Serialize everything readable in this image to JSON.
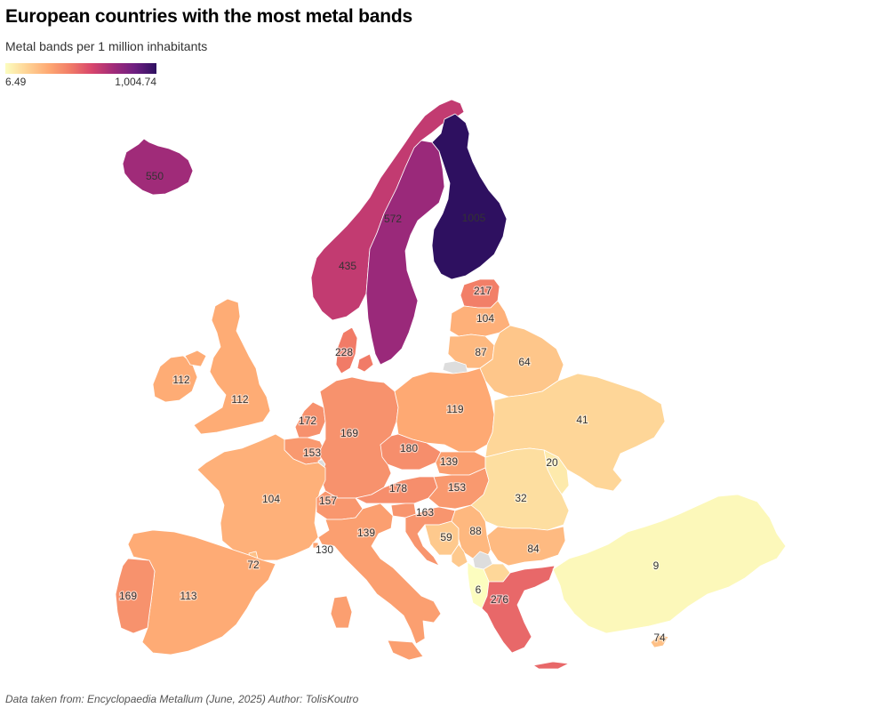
{
  "title": "European countries with the most metal bands",
  "subtitle": "Metal bands per 1 million inhabitants",
  "legend": {
    "min_label": "6.49",
    "max_label": "1,004.74",
    "min": 6.49,
    "max": 1004.74
  },
  "colors": {
    "scale": [
      "#fcfdbf",
      "#fed395",
      "#fea973",
      "#f17c67",
      "#d8466c",
      "#a12b79",
      "#6e1f81",
      "#2e1060"
    ],
    "no_data": "#dddddd"
  },
  "footer": "Data taken from: Encyclopaedia Metallum (June, 2025) Author: TolisKoutro",
  "map_data": [
    {
      "id": "iceland",
      "value": 550,
      "label": "550"
    },
    {
      "id": "norway",
      "value": 435,
      "label": "435"
    },
    {
      "id": "sweden",
      "value": 572,
      "label": "572"
    },
    {
      "id": "finland",
      "value": 1005,
      "label": "1005"
    },
    {
      "id": "estonia",
      "value": 217,
      "label": "217"
    },
    {
      "id": "latvia",
      "value": 104,
      "label": "104"
    },
    {
      "id": "lithuania",
      "value": 87,
      "label": "87"
    },
    {
      "id": "belarus",
      "value": 64,
      "label": "64"
    },
    {
      "id": "denmark",
      "value": 228,
      "label": "228"
    },
    {
      "id": "ireland",
      "value": 112,
      "label": "112"
    },
    {
      "id": "united-kingdom",
      "value": 112,
      "label": "112"
    },
    {
      "id": "netherlands",
      "value": 172,
      "label": "172"
    },
    {
      "id": "belgium",
      "value": 153,
      "label": "153"
    },
    {
      "id": "luxembourg",
      "value": null,
      "label": ""
    },
    {
      "id": "germany",
      "value": 169,
      "label": "169"
    },
    {
      "id": "poland",
      "value": 119,
      "label": "119"
    },
    {
      "id": "czechia",
      "value": 180,
      "label": "180"
    },
    {
      "id": "slovakia",
      "value": 139,
      "label": "139"
    },
    {
      "id": "ukraine",
      "value": 41,
      "label": "41"
    },
    {
      "id": "moldova",
      "value": 20,
      "label": "20"
    },
    {
      "id": "austria",
      "value": 178,
      "label": "178"
    },
    {
      "id": "hungary",
      "value": 153,
      "label": "153"
    },
    {
      "id": "romania",
      "value": 32,
      "label": "32"
    },
    {
      "id": "france",
      "value": 104,
      "label": "104"
    },
    {
      "id": "switzerland",
      "value": 157,
      "label": "157"
    },
    {
      "id": "slovenia",
      "value": 163,
      "label": "163"
    },
    {
      "id": "croatia",
      "value": 163,
      "label": ""
    },
    {
      "id": "bosnia",
      "value": 59,
      "label": "59"
    },
    {
      "id": "serbia",
      "value": 88,
      "label": "88"
    },
    {
      "id": "montenegro",
      "value": 59,
      "label": ""
    },
    {
      "id": "kosovo",
      "value": null,
      "label": ""
    },
    {
      "id": "north-macedonia",
      "value": 40,
      "label": ""
    },
    {
      "id": "albania",
      "value": 6,
      "label": "6"
    },
    {
      "id": "bulgaria",
      "value": 84,
      "label": "84"
    },
    {
      "id": "italy",
      "value": 139,
      "label": "139"
    },
    {
      "id": "monaco",
      "value": 130,
      "label": "130"
    },
    {
      "id": "andorra",
      "value": 72,
      "label": "72"
    },
    {
      "id": "spain",
      "value": 113,
      "label": "113"
    },
    {
      "id": "portugal",
      "value": 169,
      "label": "169"
    },
    {
      "id": "greece",
      "value": 276,
      "label": "276"
    },
    {
      "id": "turkey",
      "value": 9,
      "label": "9"
    },
    {
      "id": "cyprus",
      "value": 74,
      "label": "74"
    },
    {
      "id": "kaliningrad",
      "value": null,
      "label": ""
    }
  ]
}
